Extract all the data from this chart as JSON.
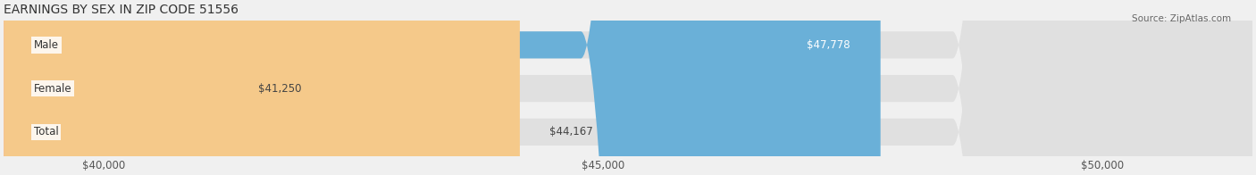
{
  "title": "EARNINGS BY SEX IN ZIP CODE 51556",
  "source": "Source: ZipAtlas.com",
  "categories": [
    "Male",
    "Female",
    "Total"
  ],
  "values": [
    47778,
    41250,
    44167
  ],
  "value_labels": [
    "$47,778",
    "$41,250",
    "$44,167"
  ],
  "bar_colors": [
    "#6ab0d8",
    "#f0a0b8",
    "#f5c98a"
  ],
  "bar_edge_colors": [
    "#6ab0d8",
    "#f0a0b8",
    "#f5c98a"
  ],
  "xlim": [
    39000,
    51500
  ],
  "xticks": [
    40000,
    45000,
    50000
  ],
  "xtick_labels": [
    "$40,000",
    "$45,000",
    "$50,000"
  ],
  "background_color": "#f0f0f0",
  "bar_bg_color": "#e8e8e8",
  "title_fontsize": 10,
  "label_fontsize": 8.5,
  "tick_fontsize": 8.5
}
